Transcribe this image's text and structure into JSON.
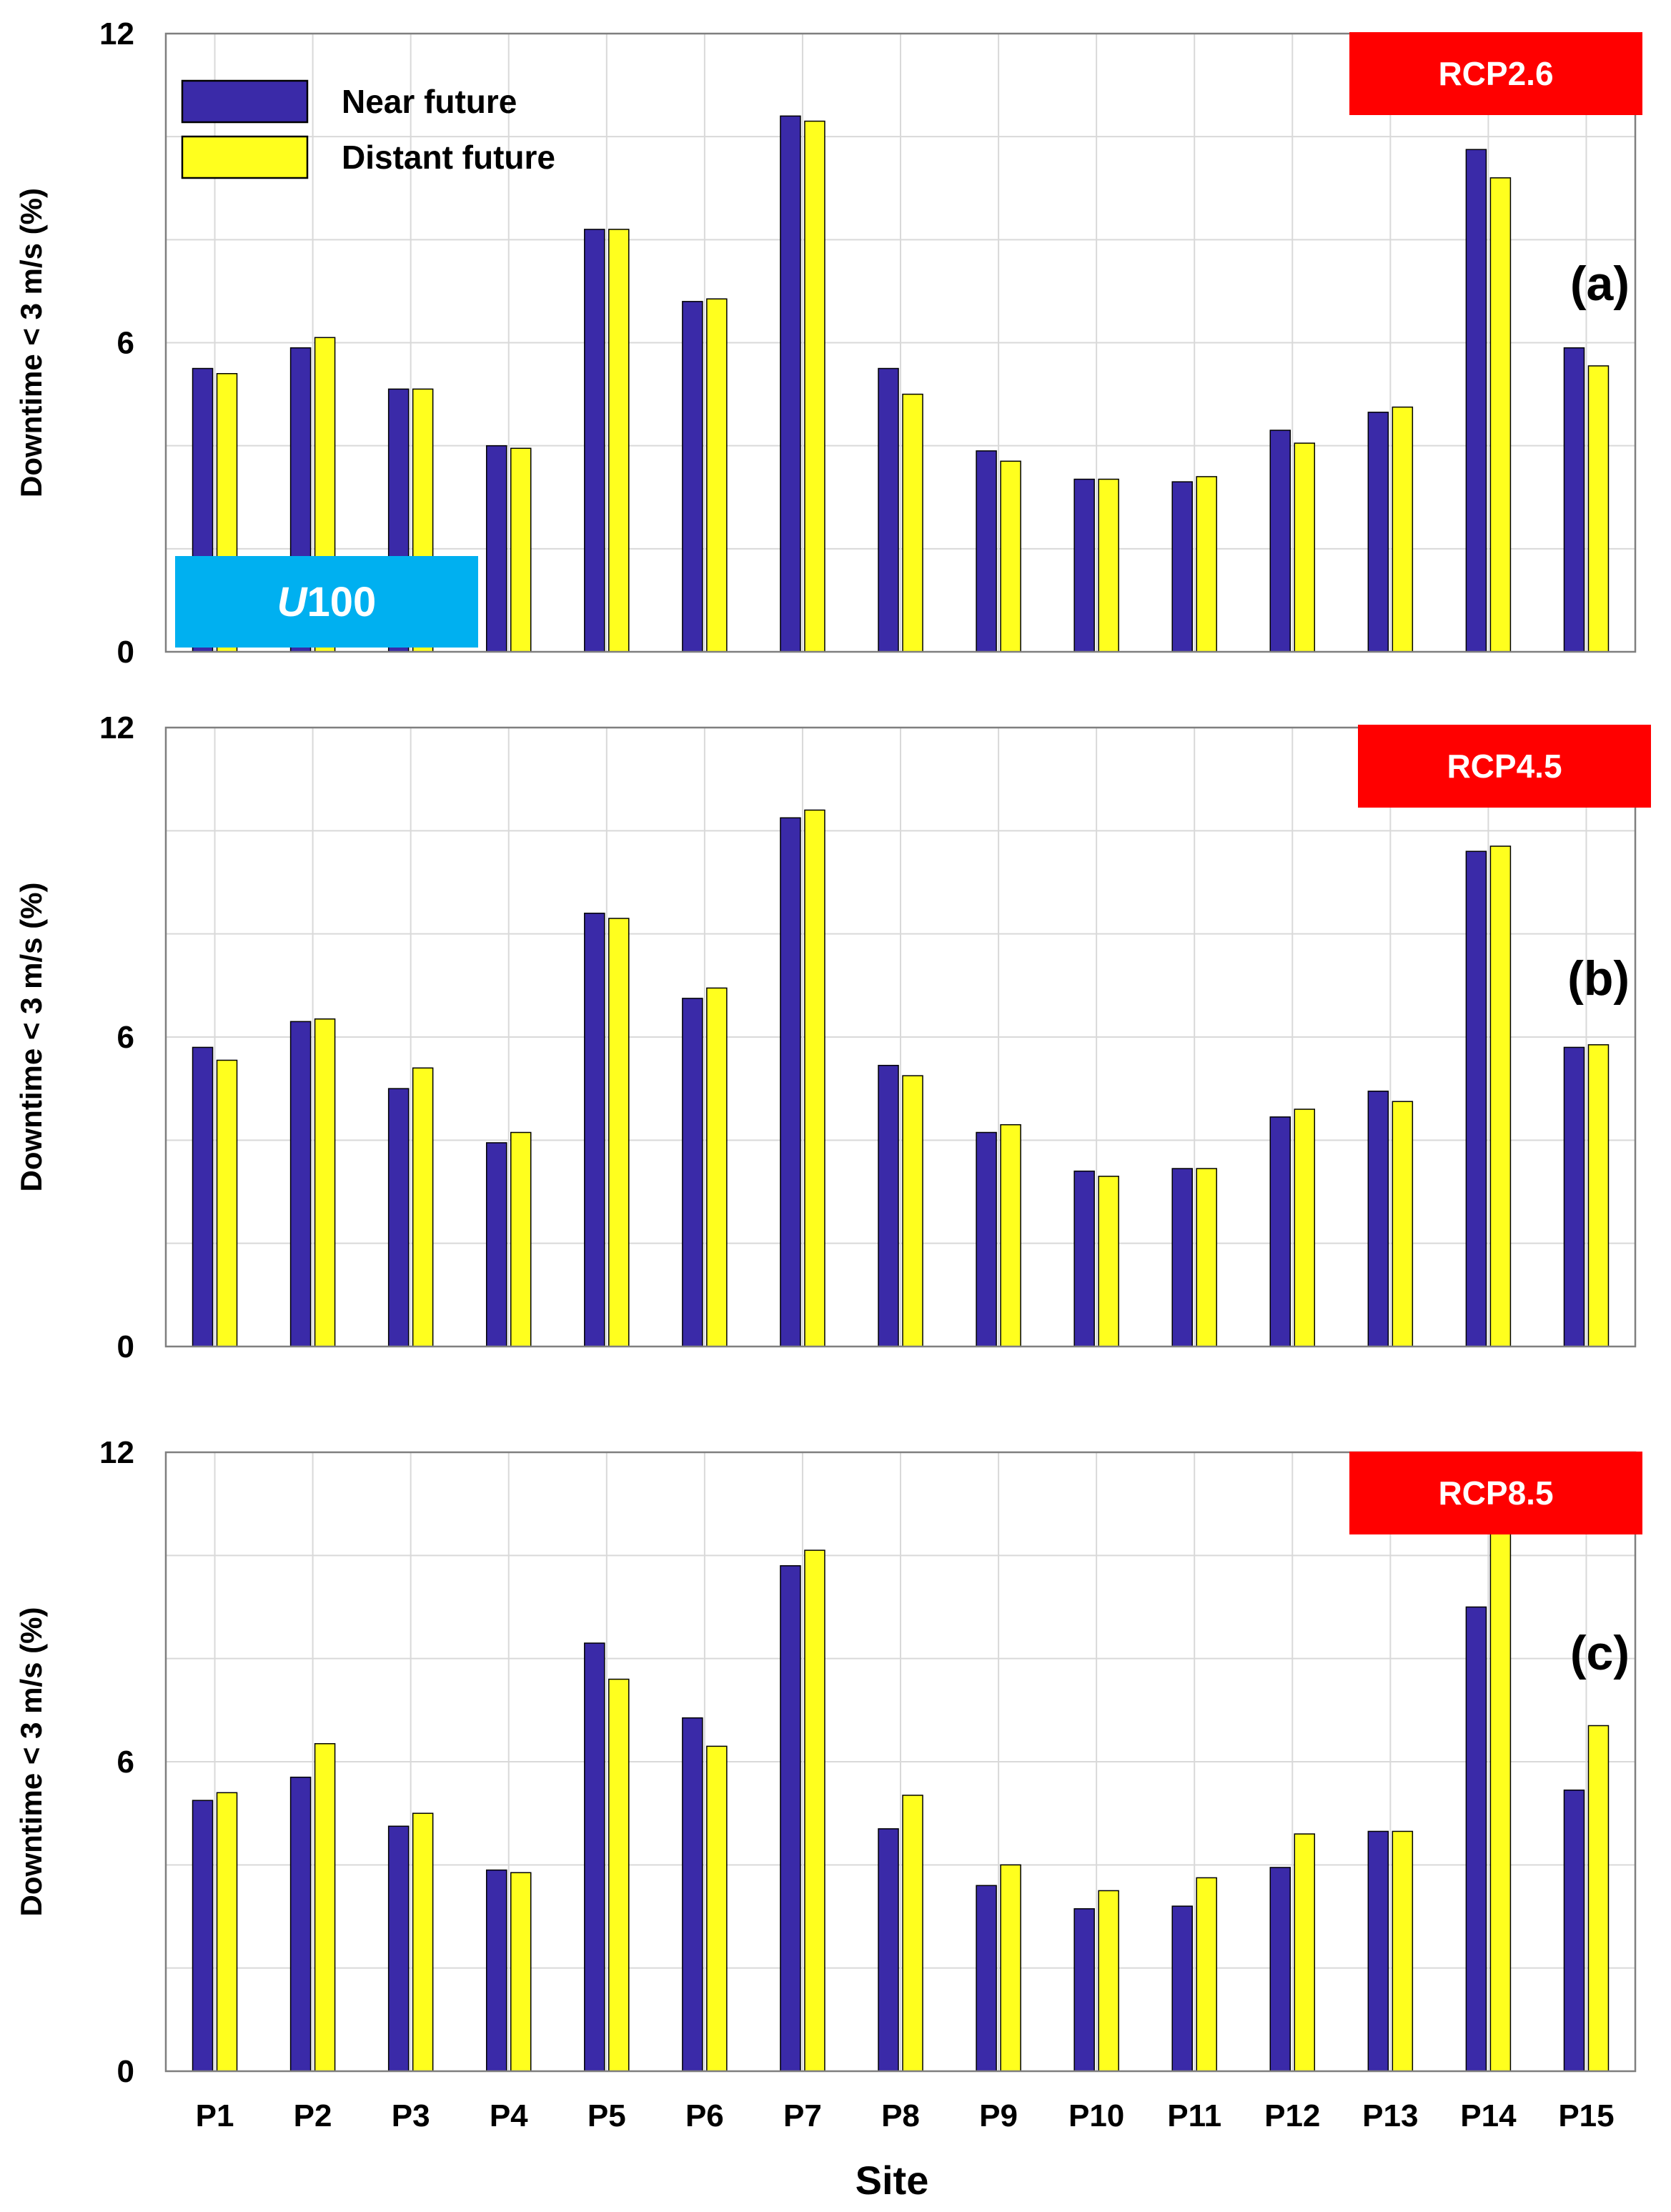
{
  "chart_data": {
    "type": "bar",
    "xlabel": "Site",
    "ylabel": "Downtime < 3 m/s (%)",
    "ylim": [
      0,
      12
    ],
    "yticks": [
      0,
      6,
      12
    ],
    "categories": [
      "P1",
      "P2",
      "P3",
      "P4",
      "P5",
      "P6",
      "P7",
      "P8",
      "P9",
      "P10",
      "P11",
      "P12",
      "P13",
      "P14",
      "P15"
    ],
    "legend": {
      "placement": "top-left",
      "entries": [
        {
          "name": "Near future",
          "color": "#3a2aa8"
        },
        {
          "name": "Distant future",
          "color": "#ffff1e"
        }
      ]
    },
    "u_badge": "U100",
    "panels": [
      {
        "label": "(a)",
        "scenario": "RCP2.6",
        "series": [
          {
            "name": "Near future",
            "values": [
              5.5,
              5.9,
              5.1,
              4.0,
              8.2,
              6.8,
              10.4,
              5.5,
              3.9,
              3.35,
              3.3,
              4.3,
              4.65,
              9.75,
              5.9
            ]
          },
          {
            "name": "Distant future",
            "values": [
              5.4,
              6.1,
              5.1,
              3.95,
              8.2,
              6.85,
              10.3,
              5.0,
              3.7,
              3.35,
              3.4,
              4.05,
              4.75,
              9.2,
              5.55
            ]
          }
        ]
      },
      {
        "label": "(b)",
        "scenario": "RCP4.5",
        "series": [
          {
            "name": "Near future",
            "values": [
              5.8,
              6.3,
              5.0,
              3.95,
              8.4,
              6.75,
              10.25,
              5.45,
              4.15,
              3.4,
              3.45,
              4.45,
              4.95,
              9.6,
              5.8
            ]
          },
          {
            "name": "Distant future",
            "values": [
              5.55,
              6.35,
              5.4,
              4.15,
              8.3,
              6.95,
              10.4,
              5.25,
              4.3,
              3.3,
              3.45,
              4.6,
              4.75,
              9.7,
              5.85
            ]
          }
        ]
      },
      {
        "label": "(c)",
        "scenario": "RCP8.5",
        "series": [
          {
            "name": "Near future",
            "values": [
              5.25,
              5.7,
              4.75,
              3.9,
              8.3,
              6.85,
              9.8,
              4.7,
              3.6,
              3.15,
              3.2,
              3.95,
              4.65,
              9.0,
              5.45
            ]
          },
          {
            "name": "Distant future",
            "values": [
              5.4,
              6.35,
              5.0,
              3.85,
              7.6,
              6.3,
              10.1,
              5.35,
              4.0,
              3.5,
              3.75,
              4.6,
              4.65,
              10.6,
              6.7
            ]
          }
        ]
      }
    ],
    "colors": {
      "near": "#3a2aa8",
      "distant": "#ffff1e",
      "rcp_badge": "#ff0000",
      "u_badge": "#00b0f0"
    },
    "grid": true
  }
}
